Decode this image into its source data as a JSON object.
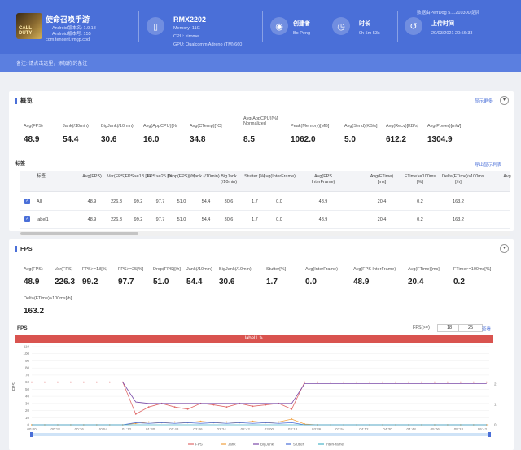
{
  "header": {
    "app_name": "使命召唤手游",
    "android_version": "Android版本名: 1.9.18",
    "android_version_code": "Android版本号: 155",
    "package": "com.tencent.tmgp.cod",
    "icon_text": "CALL DUTY",
    "device_name": "RMX2202",
    "memory": "Memory: 11G",
    "cpu": "CPU: kirome",
    "gpu": "GPU: Qualcomm Adreno (TM) 660",
    "user_label": "创建者",
    "user_value": "Bo Peng",
    "duration_label": "时长",
    "duration_value": "0h 5m 53s",
    "upload_label": "上传时间",
    "upload_value": "20/03/2021 20:56:33",
    "version_note": "数据由PerfDog 5.1.210300提供",
    "note": "备注: 请点击这里，添加你的备注"
  },
  "overview": {
    "title": "概览",
    "link": "显示更多",
    "metrics": [
      {
        "label": "Avg(FPS)",
        "value": "48.9"
      },
      {
        "label": "Jank(/10min)",
        "value": "54.4"
      },
      {
        "label": "BigJank(/10min)",
        "value": "30.6"
      },
      {
        "label": "Avg(AppCPU)[%]",
        "value": "16.0"
      },
      {
        "label": "Avg(CTemp)[°C]",
        "value": "34.8"
      },
      {
        "label": "Avg(AppCPU)[%] Normalized",
        "value": "8.5"
      },
      {
        "label": "Peak(Memory)[MB]",
        "value": "1062.0"
      },
      {
        "label": "Avg(Send)[KB/s]",
        "value": "5.0"
      },
      {
        "label": "Avg(Recv)[KB/s]",
        "value": "612.2"
      },
      {
        "label": "Avg(Power)[mW]",
        "value": "1304.9"
      }
    ],
    "section_label": "标签",
    "table_link": "导出显示列表",
    "table": {
      "headers": [
        "标签",
        "Avg(FPS)",
        "Var(FPS)",
        "FPS>=18 [%]",
        "FPS>=25 [%]",
        "Drop(FPS)[/h]",
        "Jank (/10min)",
        "BigJank (/10min)",
        "Stutter [%]",
        "Avg(InterFrame)",
        "Avg(FPS InterFrame)",
        "Avg(FTime) [ms]",
        "FTime>=100ms [%]",
        "Delta(FTime)>100ms [/h]",
        "Avg"
      ],
      "rows": [
        [
          "All",
          "48.9",
          "226.3",
          "99.2",
          "97.7",
          "51.0",
          "54.4",
          "30.6",
          "1.7",
          "0.0",
          "48.9",
          "20.4",
          "0.2",
          "163.2",
          ""
        ],
        [
          "label1",
          "48.9",
          "226.3",
          "99.2",
          "97.7",
          "51.0",
          "54.4",
          "30.6",
          "1.7",
          "0.0",
          "48.9",
          "20.4",
          "0.2",
          "163.2",
          ""
        ]
      ]
    }
  },
  "fps": {
    "title": "FPS",
    "metrics": [
      {
        "label": "Avg(FPS)",
        "value": "48.9"
      },
      {
        "label": "Var(FPS)",
        "value": "226.3"
      },
      {
        "label": "FPS>=18[%]",
        "value": "99.2"
      },
      {
        "label": "FPS>=25[%]",
        "value": "97.7"
      },
      {
        "label": "Drop(FPS)[/h]",
        "value": "51.0"
      },
      {
        "label": "Jank(/10min)",
        "value": "54.4"
      },
      {
        "label": "BigJank(/10min)",
        "value": "30.6"
      },
      {
        "label": "Stutter[%]",
        "value": "1.7"
      },
      {
        "label": "Avg(InterFrame)",
        "value": "0.0"
      },
      {
        "label": "Avg(FPS InterFrame)",
        "value": "48.9"
      },
      {
        "label": "Avg(FTime)[ms]",
        "value": "20.4"
      },
      {
        "label": "FTime>=100ms[%]",
        "value": "0.2"
      },
      {
        "label": "Delta(FTime)>100ms[/h]",
        "value": "163.2"
      }
    ],
    "chart_label": "FPS",
    "fps_filter_label": "FPS(>=)",
    "fps_low": "18",
    "fps_high": "25",
    "apply_label": "查看",
    "label_bar": "label1"
  },
  "chart_data": {
    "type": "line",
    "ylabel": "FPS",
    "y_ticks": [
      "0",
      "10",
      "20",
      "30",
      "40",
      "50",
      "60",
      "70",
      "80",
      "90",
      "100",
      "110"
    ],
    "y2_ticks": [
      "0",
      "1",
      "2"
    ],
    "x_ticks": [
      "00:00",
      "00:18",
      "00:36",
      "00:54",
      "01:12",
      "01:30",
      "01:48",
      "02:06",
      "02:24",
      "02:42",
      "03:00",
      "03:18",
      "03:36",
      "03:54",
      "04:12",
      "04:30",
      "04:48",
      "05:06",
      "05:24",
      "05:42"
    ],
    "ylim": [
      0,
      110
    ],
    "x": [
      0,
      10,
      20,
      30,
      40,
      50,
      60,
      70,
      80,
      90,
      100,
      110,
      120,
      130,
      140,
      150,
      160,
      170,
      180,
      190,
      200,
      210,
      220,
      230,
      240,
      250,
      260,
      270,
      280,
      290,
      300,
      310,
      320,
      330,
      340,
      350
    ],
    "series": [
      {
        "name": "FPS",
        "color": "#e06a6a",
        "values": [
          60,
          60,
          60,
          60,
          60,
          60,
          60,
          60,
          15,
          25,
          30,
          25,
          22,
          30,
          28,
          25,
          30,
          26,
          28,
          30,
          22,
          60,
          60,
          60,
          60,
          60,
          60,
          60,
          60,
          60,
          60,
          60,
          60,
          60,
          60,
          60
        ]
      },
      {
        "name": "Jank",
        "color": "#f0a040",
        "values": [
          0,
          0,
          0,
          0,
          0,
          0,
          0,
          0,
          2,
          4,
          3,
          4,
          3,
          5,
          3,
          4,
          3,
          5,
          3,
          4,
          8,
          1,
          0,
          0,
          0,
          0,
          0,
          0,
          0,
          0,
          0,
          0,
          0,
          0,
          0,
          0
        ]
      },
      {
        "name": "BigJank",
        "color": "#7a4aa8",
        "values": [
          60,
          60,
          60,
          60,
          60,
          60,
          60,
          60,
          32,
          30,
          30,
          30,
          30,
          30,
          30,
          30,
          30,
          30,
          30,
          30,
          30,
          58,
          58,
          58,
          58,
          58,
          58,
          58,
          58,
          58,
          58,
          58,
          58,
          58,
          58,
          58
        ]
      },
      {
        "name": "Stutter",
        "color": "#4a6fd8",
        "values": [
          0,
          0,
          0,
          0,
          0,
          0,
          0,
          0,
          3,
          2,
          3,
          2,
          3,
          2,
          3,
          2,
          3,
          2,
          3,
          2,
          3,
          0,
          0,
          0,
          0,
          0,
          0,
          0,
          0,
          0,
          0,
          0,
          0,
          0,
          0,
          0
        ]
      },
      {
        "name": "InterFrame",
        "color": "#4ab4c8",
        "values": [
          0,
          0,
          0,
          0,
          0,
          0,
          0,
          0,
          0,
          0,
          0,
          0,
          0,
          0,
          0,
          0,
          0,
          0,
          0,
          0,
          0,
          0,
          0,
          0,
          0,
          0,
          0,
          0,
          0,
          0,
          0,
          0,
          0,
          0,
          0,
          0
        ]
      }
    ]
  }
}
